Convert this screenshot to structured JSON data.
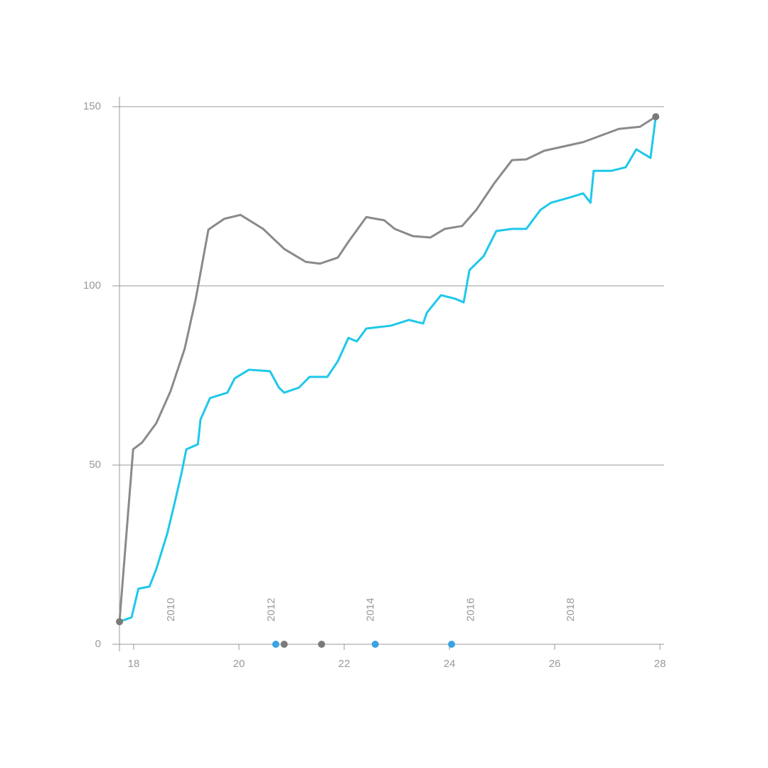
{
  "chart_data": {
    "type": "line",
    "xlim": [
      17.73,
      28.08
    ],
    "ylim": [
      0,
      150
    ],
    "xticks": [
      18,
      20,
      22,
      24,
      26,
      28
    ],
    "yticks": [
      0,
      50,
      100,
      150
    ],
    "grid": true,
    "series": [
      {
        "color": "#8a8a8a",
        "x": [
          17.73,
          17.99,
          18.16,
          18.43,
          18.7,
          18.97,
          19.18,
          19.42,
          19.72,
          20.03,
          20.46,
          20.86,
          21.27,
          21.54,
          21.88,
          22.08,
          22.42,
          22.76,
          22.96,
          23.3,
          23.64,
          23.91,
          24.24,
          24.51,
          24.85,
          25.19,
          25.46,
          25.8,
          26.54,
          27.22,
          27.62,
          27.92
        ],
        "values": [
          6.3,
          54.4,
          56.3,
          61.7,
          70.6,
          82.5,
          96.4,
          115.7,
          118.7,
          119.8,
          115.9,
          110.3,
          106.7,
          106.2,
          107.9,
          112.3,
          119.2,
          118.3,
          115.9,
          113.9,
          113.5,
          115.9,
          116.7,
          121.2,
          128.6,
          135.1,
          135.3,
          137.7,
          140.1,
          143.8,
          144.4,
          147.2
        ]
      },
      {
        "color": "#1ec8ea",
        "x": [
          17.73,
          17.96,
          18.09,
          18.3,
          18.43,
          18.64,
          18.77,
          18.91,
          19.0,
          19.22,
          19.27,
          19.45,
          19.78,
          19.92,
          20.19,
          20.59,
          20.76,
          20.86,
          21.14,
          21.34,
          21.68,
          21.88,
          22.08,
          22.24,
          22.42,
          22.89,
          23.23,
          23.5,
          23.57,
          23.84,
          24.11,
          24.27,
          24.38,
          24.65,
          24.89,
          25.19,
          25.46,
          25.73,
          25.93,
          26.27,
          26.54,
          26.68,
          26.74,
          27.08,
          27.35,
          27.55,
          27.82,
          27.92
        ],
        "values": [
          6.3,
          7.5,
          15.5,
          16.1,
          21.0,
          31.0,
          38.9,
          47.8,
          54.4,
          55.8,
          62.7,
          68.7,
          70.2,
          74.2,
          76.6,
          76.2,
          71.6,
          70.2,
          71.6,
          74.6,
          74.6,
          79.0,
          85.5,
          84.5,
          88.1,
          88.9,
          90.5,
          89.5,
          92.5,
          97.4,
          96.4,
          95.4,
          104.4,
          108.3,
          115.3,
          115.9,
          115.9,
          121.2,
          123.2,
          124.6,
          125.8,
          123.2,
          132.1,
          132.1,
          133.1,
          138.1,
          135.7,
          147.2
        ]
      }
    ],
    "points": [
      {
        "x": 17.73,
        "y": 6.3,
        "color": "#7a7a7a"
      },
      {
        "x": 27.92,
        "y": 147.2,
        "color": "#7a7a7a"
      },
      {
        "x": 20.7,
        "y": 0,
        "color": "#3aa3e3"
      },
      {
        "x": 20.86,
        "y": 0,
        "color": "#7a7a7a"
      },
      {
        "x": 21.57,
        "y": 0,
        "color": "#7a7a7a"
      },
      {
        "x": 22.59,
        "y": 0,
        "color": "#3aa3e3"
      },
      {
        "x": 24.04,
        "y": 0,
        "color": "#3aa3e3"
      }
    ],
    "annotations": [
      {
        "text": "2010",
        "x": 18.72
      },
      {
        "text": "2012",
        "x": 20.62
      },
      {
        "text": "2014",
        "x": 22.51
      },
      {
        "text": "2016",
        "x": 24.41
      },
      {
        "text": "2018",
        "x": 26.31
      }
    ]
  }
}
